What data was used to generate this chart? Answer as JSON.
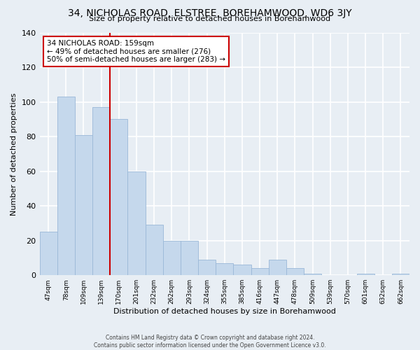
{
  "title": "34, NICHOLAS ROAD, ELSTREE, BOREHAMWOOD, WD6 3JY",
  "subtitle": "Size of property relative to detached houses in Borehamwood",
  "xlabel": "Distribution of detached houses by size in Borehamwood",
  "ylabel": "Number of detached properties",
  "categories": [
    "47sqm",
    "78sqm",
    "109sqm",
    "139sqm",
    "170sqm",
    "201sqm",
    "232sqm",
    "262sqm",
    "293sqm",
    "324sqm",
    "355sqm",
    "385sqm",
    "416sqm",
    "447sqm",
    "478sqm",
    "509sqm",
    "539sqm",
    "570sqm",
    "601sqm",
    "632sqm",
    "662sqm"
  ],
  "values": [
    25,
    103,
    81,
    97,
    90,
    60,
    29,
    20,
    20,
    9,
    7,
    6,
    4,
    9,
    4,
    1,
    0,
    0,
    1,
    0,
    1
  ],
  "bar_color": "#c5d8ec",
  "bar_edge_color": "#9ab8d8",
  "vline_x_index": 4,
  "vline_color": "#cc0000",
  "annotation_title": "34 NICHOLAS ROAD: 159sqm",
  "annotation_line1": "← 49% of detached houses are smaller (276)",
  "annotation_line2": "50% of semi-detached houses are larger (283) →",
  "annotation_box_color": "#ffffff",
  "annotation_border_color": "#cc0000",
  "ylim": [
    0,
    140
  ],
  "yticks": [
    0,
    20,
    40,
    60,
    80,
    100,
    120,
    140
  ],
  "background_color": "#e8eef4",
  "grid_color": "#ffffff",
  "footer_line1": "Contains HM Land Registry data © Crown copyright and database right 2024.",
  "footer_line2": "Contains public sector information licensed under the Open Government Licence v3.0."
}
